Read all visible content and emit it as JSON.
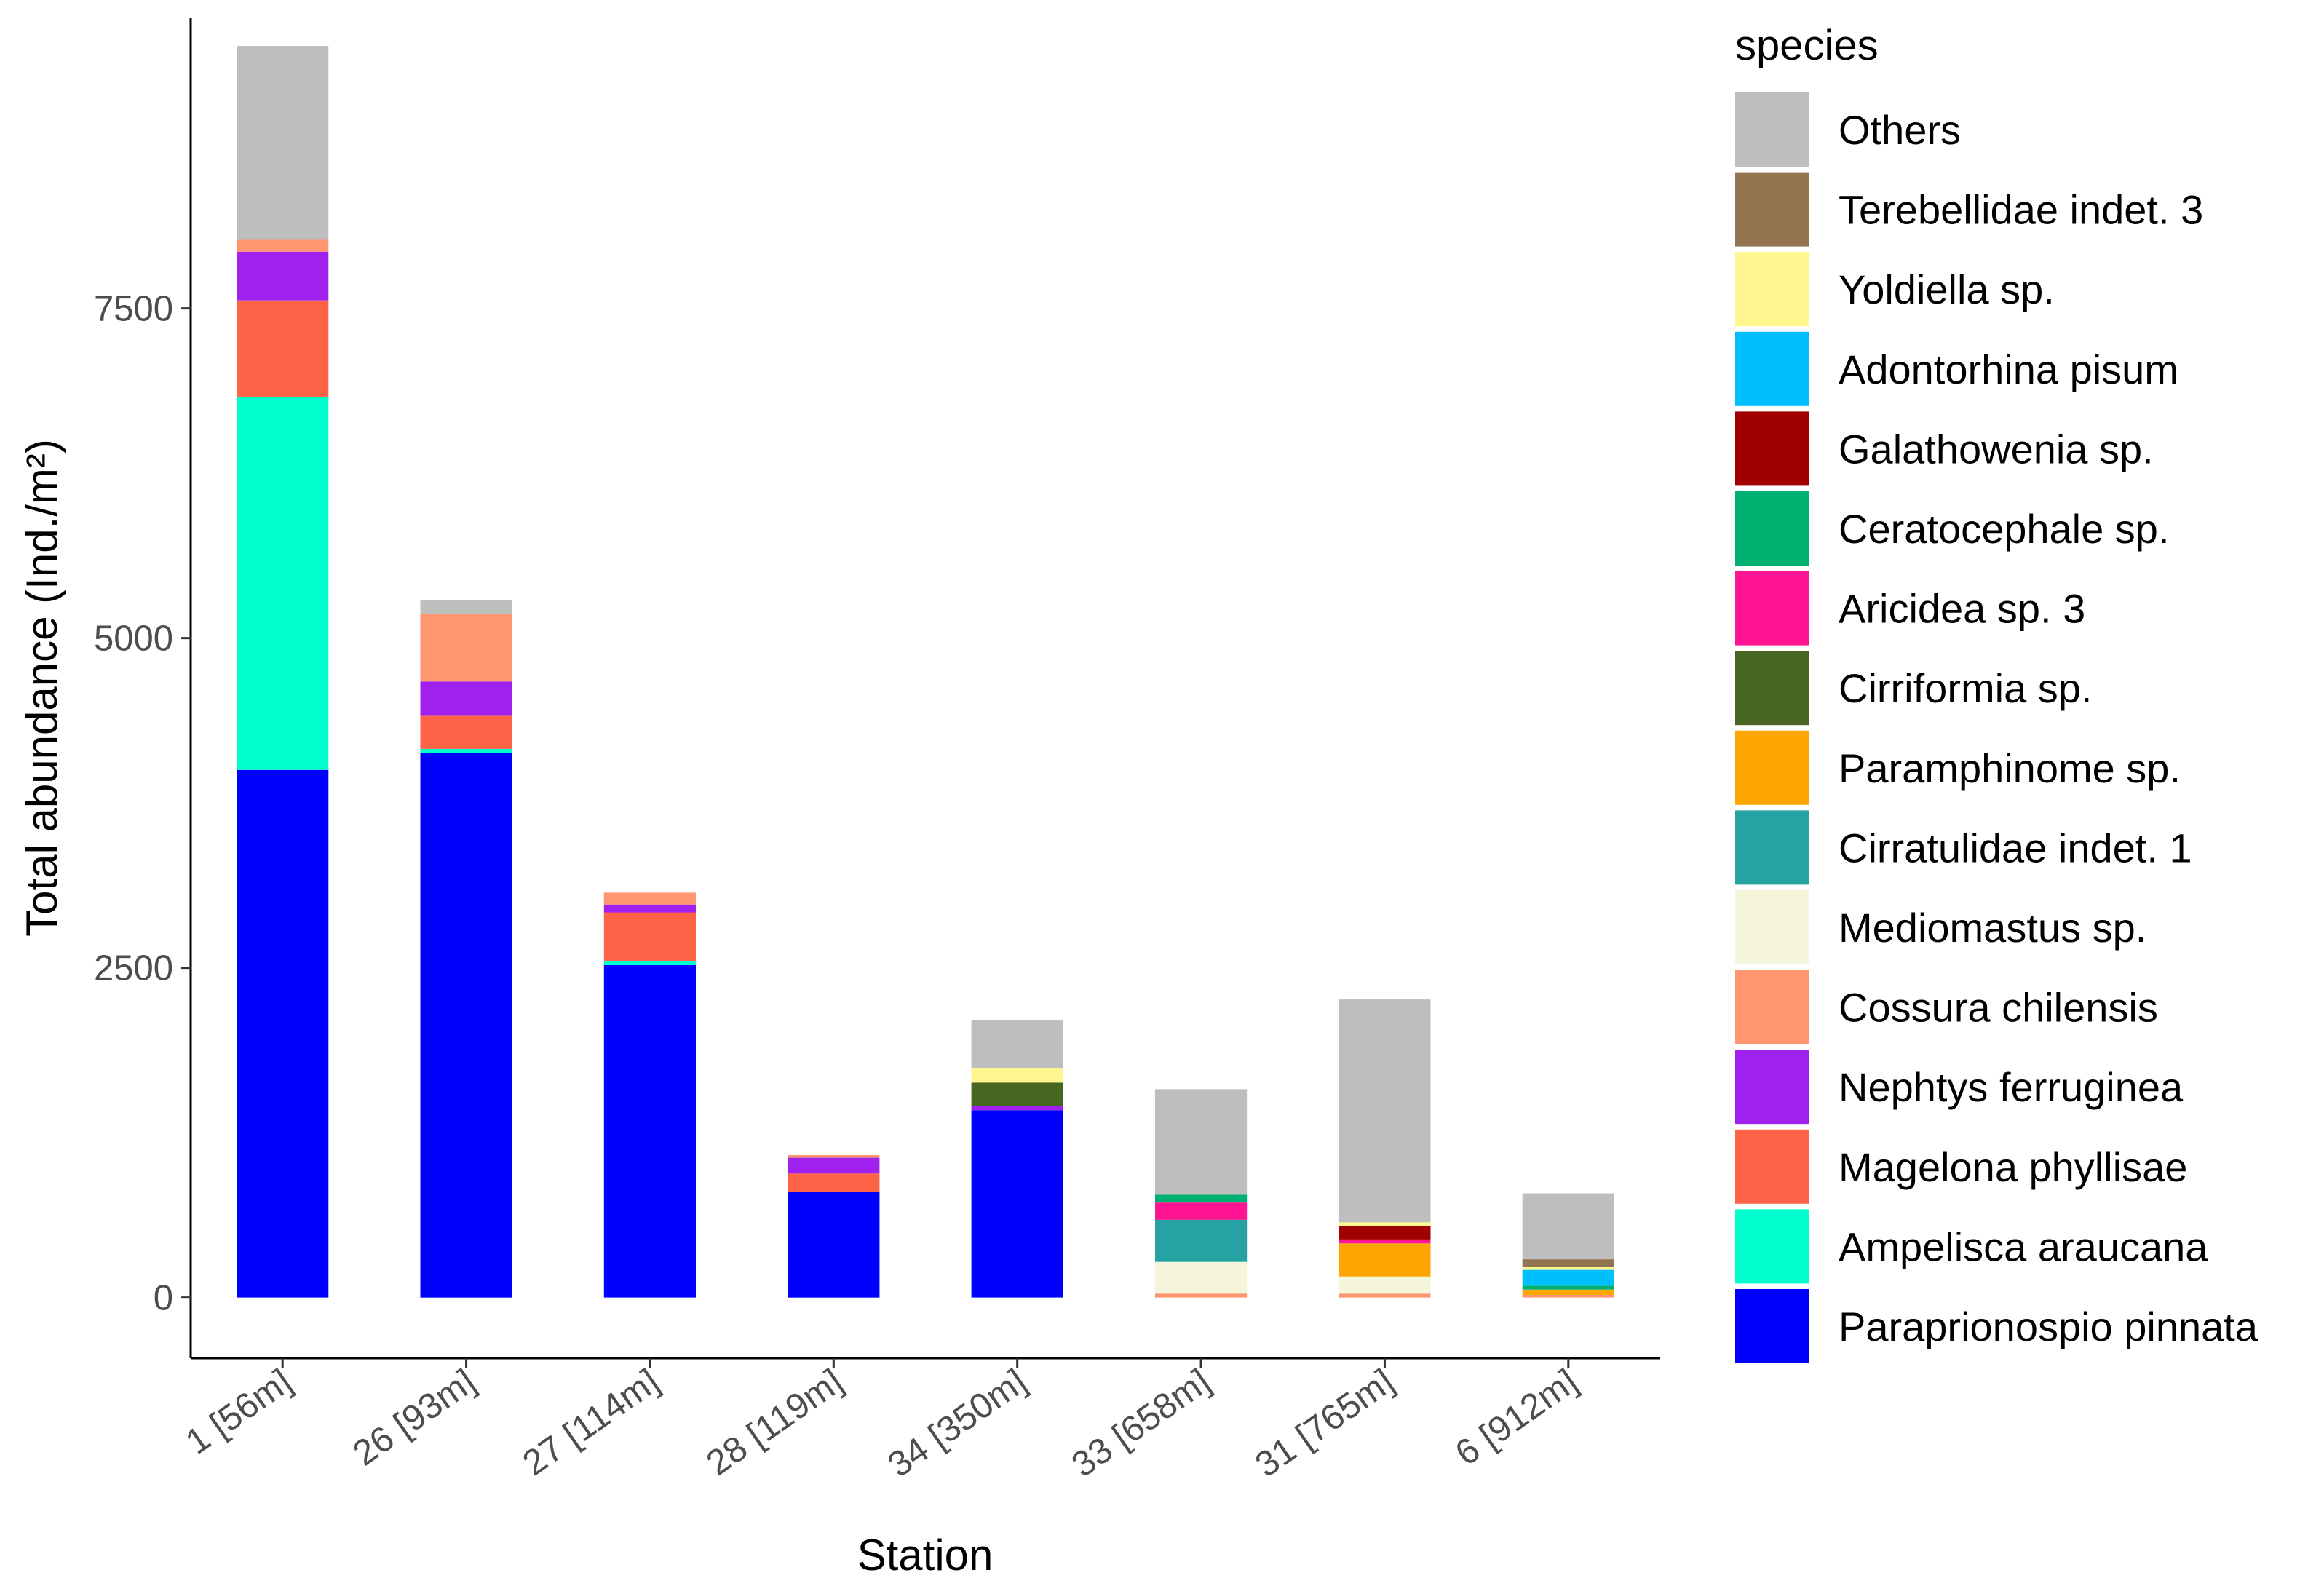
{
  "chart_data": {
    "type": "bar",
    "stacked": true,
    "title": "",
    "xlabel": "Station",
    "ylabel": "Total abundance (Ind./m²)",
    "ylim": [
      -460,
      9700
    ],
    "yticks": [
      0,
      2500,
      5000,
      7500
    ],
    "ytick_labels": [
      "0",
      "2500",
      "5000",
      "7500"
    ],
    "legend_title": "species",
    "legend_position": "right",
    "grid": false,
    "categories": [
      "1 [56m]",
      "26 [93m]",
      "27 [114m]",
      "28 [119m]",
      "34 [350m]",
      "33 [658m]",
      "31 [765m]",
      "6 [912m]"
    ],
    "series": [
      {
        "name": "Paraprionospio pinnata",
        "color": "#0000FF",
        "values": [
          4000,
          4130,
          2520,
          800,
          1420,
          0,
          0,
          0
        ]
      },
      {
        "name": "Ampelisca araucana",
        "color": "#00FFCC",
        "values": [
          2830,
          30,
          30,
          0,
          0,
          0,
          0,
          0
        ]
      },
      {
        "name": "Magelona phyllisae",
        "color": "#FF6347",
        "values": [
          730,
          250,
          370,
          140,
          0,
          0,
          0,
          0
        ]
      },
      {
        "name": "Nephtys ferruginea",
        "color": "#A020F0",
        "values": [
          370,
          260,
          60,
          120,
          30,
          0,
          0,
          0
        ]
      },
      {
        "name": "Cossura chilensis",
        "color": "#FF9670",
        "values": [
          90,
          510,
          90,
          20,
          0,
          30,
          30,
          20
        ]
      },
      {
        "name": "Mediomastus sp.",
        "color": "#F5F5DC",
        "values": [
          0,
          0,
          0,
          0,
          0,
          240,
          130,
          0
        ]
      },
      {
        "name": "Cirratulidae indet. 1",
        "color": "#27A2A2",
        "values": [
          0,
          0,
          0,
          0,
          0,
          320,
          0,
          0
        ]
      },
      {
        "name": "Paramphinome sp.",
        "color": "#FFA500",
        "values": [
          0,
          0,
          0,
          0,
          0,
          0,
          250,
          40
        ]
      },
      {
        "name": "Cirriformia sp.",
        "color": "#476622",
        "values": [
          0,
          0,
          0,
          0,
          180,
          0,
          0,
          0
        ]
      },
      {
        "name": "Aricidea sp. 3",
        "color": "#FF1493",
        "values": [
          0,
          0,
          0,
          0,
          0,
          130,
          30,
          0
        ]
      },
      {
        "name": "Ceratocephale sp.",
        "color": "#00B070",
        "values": [
          0,
          0,
          0,
          0,
          0,
          60,
          0,
          30
        ]
      },
      {
        "name": "Galathowenia sp.",
        "color": "#A00000",
        "values": [
          0,
          0,
          0,
          0,
          0,
          0,
          100,
          0
        ]
      },
      {
        "name": "Adontorhina pisum",
        "color": "#00BFFF",
        "values": [
          0,
          0,
          0,
          0,
          0,
          0,
          0,
          120
        ]
      },
      {
        "name": "Yoldiella sp.",
        "color": "#FFF68F",
        "values": [
          0,
          0,
          0,
          0,
          110,
          0,
          30,
          20
        ]
      },
      {
        "name": "Terebellidae indet. 3",
        "color": "#937450",
        "values": [
          0,
          0,
          0,
          0,
          0,
          0,
          0,
          60
        ]
      },
      {
        "name": "Others",
        "color": "#BEBEBE",
        "values": [
          1470,
          110,
          0,
          0,
          360,
          800,
          1690,
          500
        ]
      }
    ]
  }
}
